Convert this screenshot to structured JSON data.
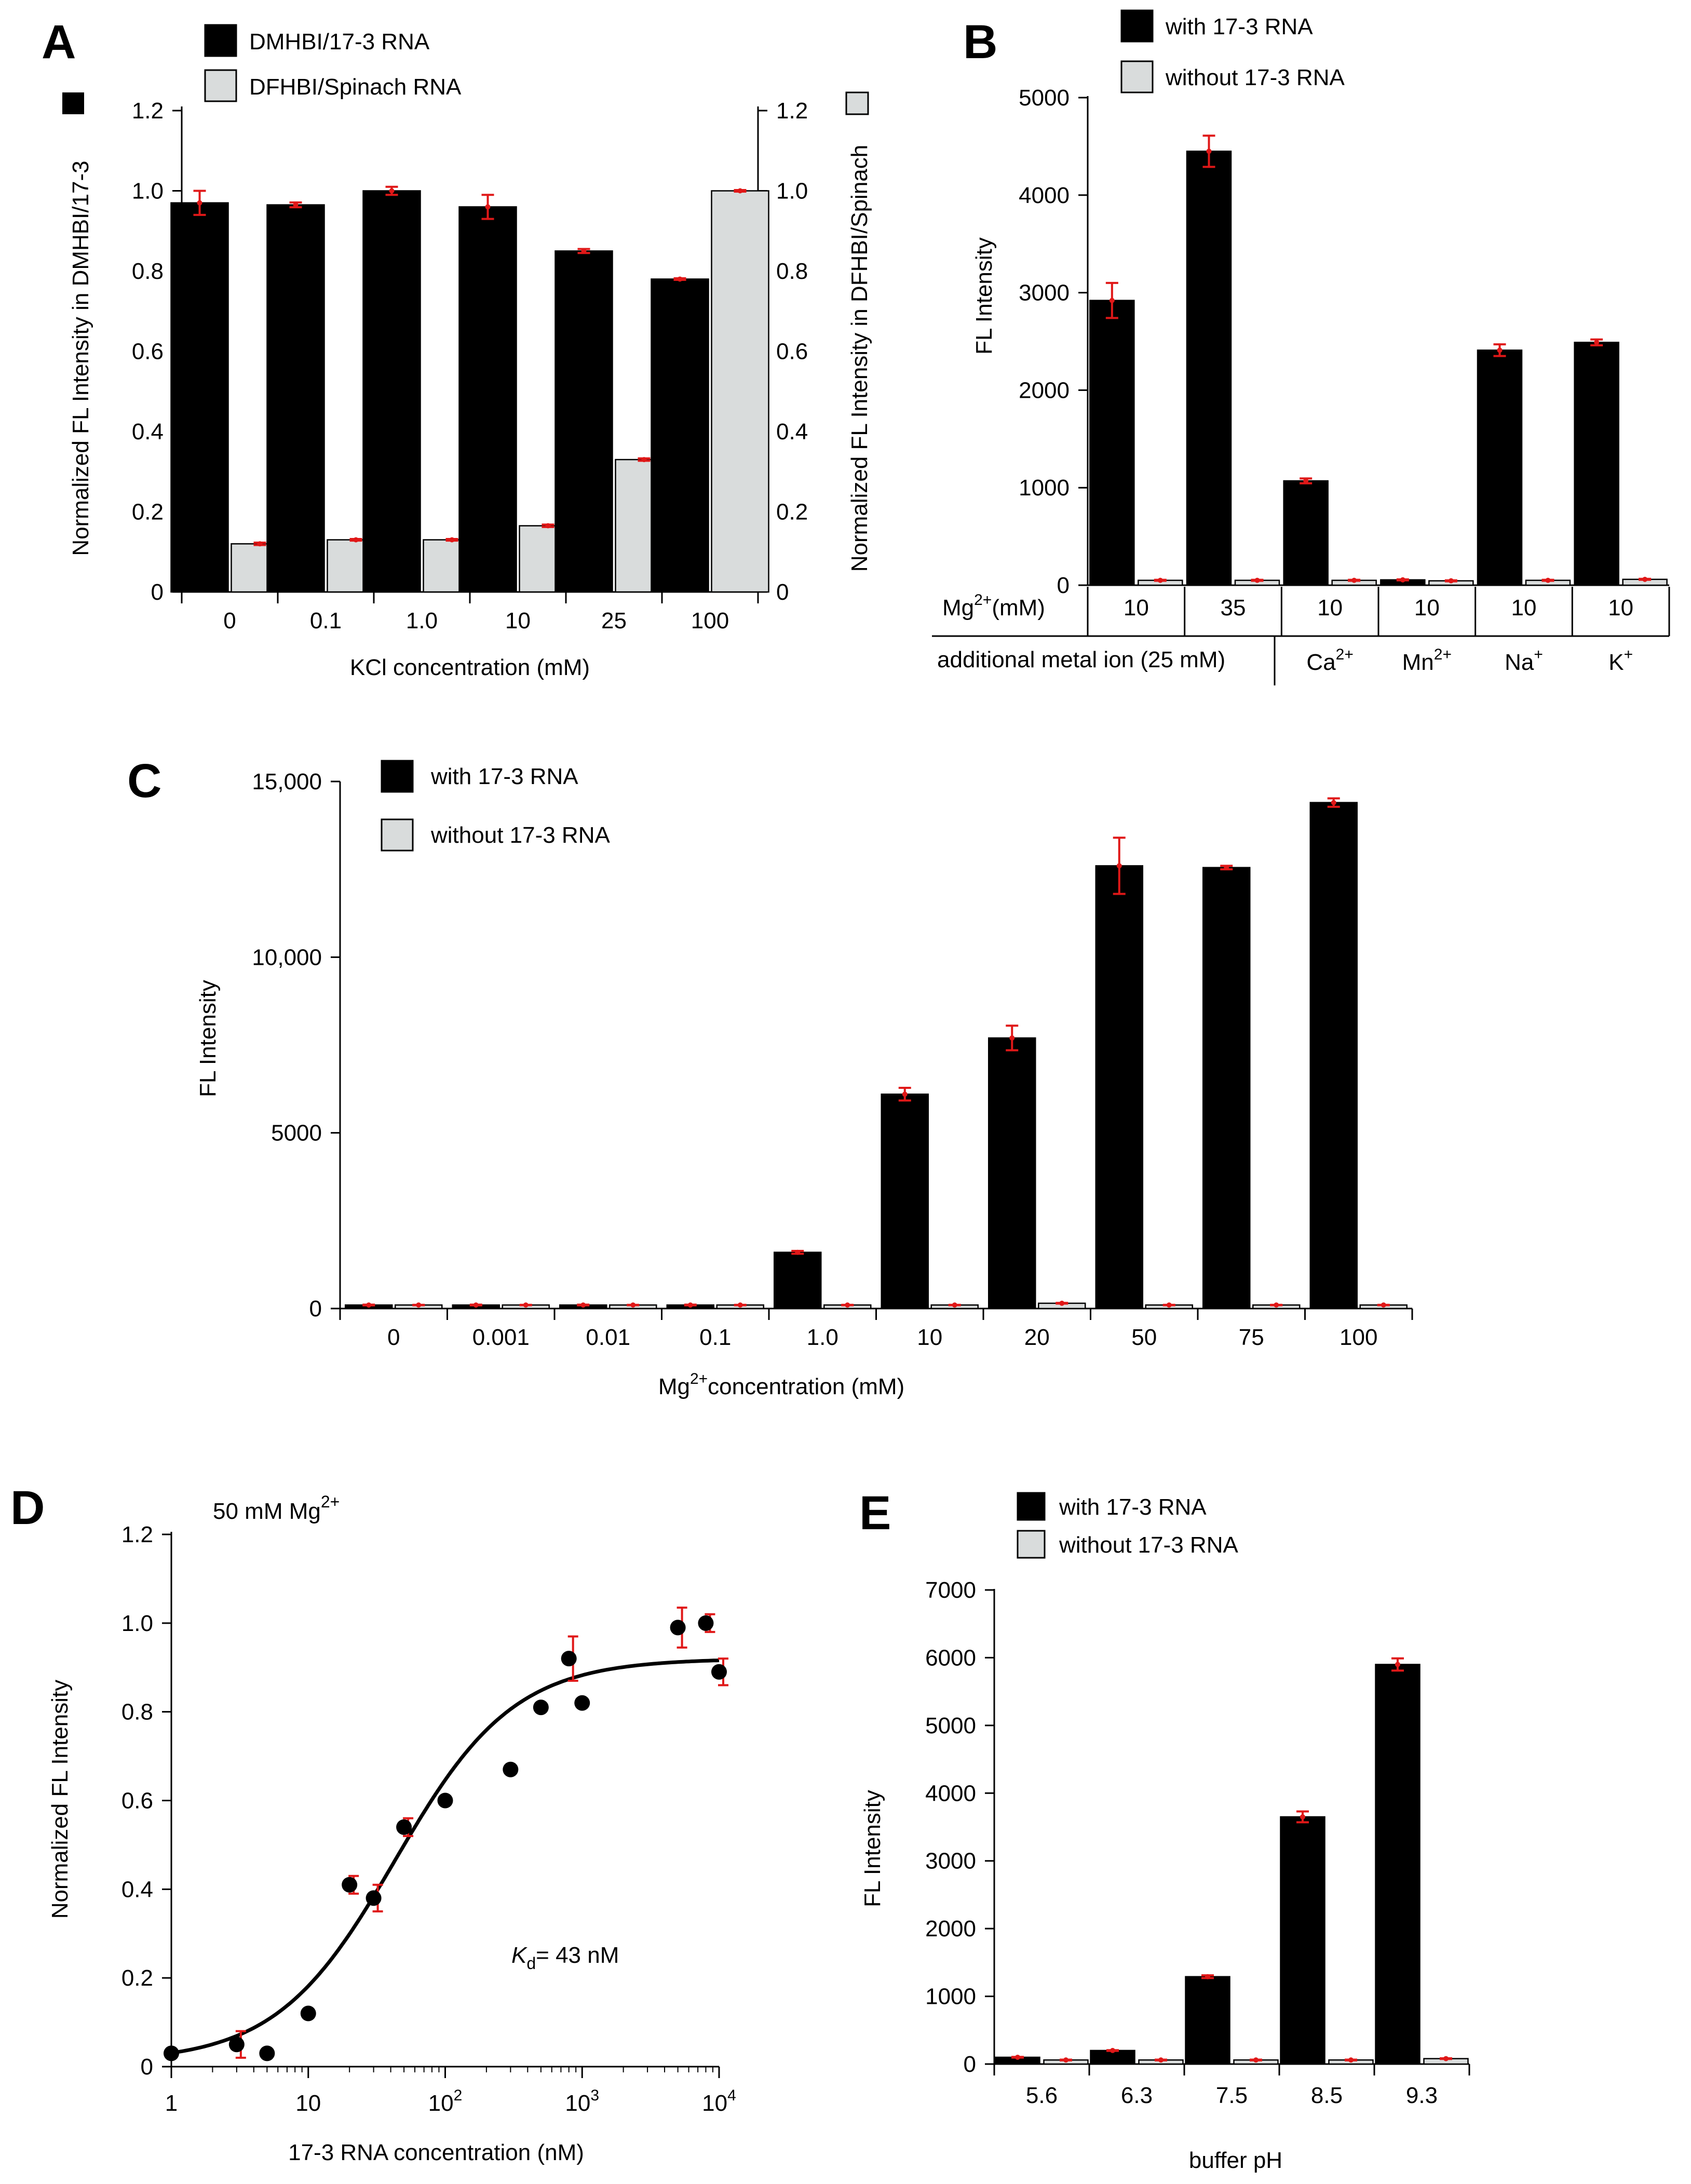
{
  "chart_data": [
    {
      "panel": "A",
      "type": "bar",
      "xlabel": "KCl concentration (mM)",
      "ylabel": "Normalized FL Intensity in DMHBI/17-3",
      "ylabel_right": "Normalized FL Intensity in DFHBI/Spinach",
      "ylim": [
        0,
        1.2
      ],
      "yticks": [
        "0",
        "0.2",
        "0.4",
        "0.6",
        "0.8",
        "1.0",
        "1.2"
      ],
      "categories": [
        "0",
        "0.1",
        "1.0",
        "10",
        "25",
        "100"
      ],
      "series": [
        {
          "name": "DMHBI/17-3 RNA",
          "color": "#000000",
          "values": [
            0.97,
            0.965,
            1.0,
            0.96,
            0.85,
            0.78
          ],
          "errors": [
            0.03,
            0.006,
            0.01,
            0.03,
            0.005,
            0.002
          ]
        },
        {
          "name": "DFHBI/Spinach RNA",
          "color": "#d9dcdc",
          "values": [
            0.12,
            0.13,
            0.13,
            0.165,
            0.33,
            1.0
          ],
          "errors": [
            0.003,
            0.002,
            0.002,
            0.003,
            0.003,
            0.002
          ]
        }
      ]
    },
    {
      "panel": "B",
      "type": "bar",
      "ylabel": "FL Intensity",
      "ylim": [
        0,
        5000
      ],
      "yticks": [
        "0",
        "1000",
        "2000",
        "3000",
        "4000",
        "5000"
      ],
      "row1_label": "Mg",
      "row1_sup": "2+",
      "row1_unit": "(mM)",
      "mg_values": [
        "10",
        "35",
        "10",
        "10",
        "10",
        "10"
      ],
      "row2_label": "additional metal ion (25 mM)",
      "ions": [
        {
          "base": "Ca",
          "sup": "2+"
        },
        {
          "base": "Mn",
          "sup": "2+"
        },
        {
          "base": "Na",
          "sup": "+"
        },
        {
          "base": "K",
          "sup": "+"
        }
      ],
      "series": [
        {
          "name": "with 17-3 RNA",
          "color": "#000000",
          "values": [
            2920,
            4450,
            1070,
            55,
            2410,
            2490
          ],
          "errors": [
            180,
            160,
            25,
            5,
            60,
            30
          ]
        },
        {
          "name": "without 17-3 RNA",
          "color": "#d9dcdc",
          "values": [
            50,
            50,
            50,
            45,
            50,
            60
          ],
          "errors": [
            5,
            5,
            5,
            5,
            5,
            5
          ]
        }
      ]
    },
    {
      "panel": "C",
      "type": "bar",
      "ylabel": "FL Intensity",
      "xlabel_base": "Mg",
      "xlabel_sup": "2+",
      "xlabel_rest": "concentration (mM)",
      "ylim": [
        0,
        15000
      ],
      "yticks": [
        "0",
        "5000",
        "10,000",
        "15,000"
      ],
      "ytick_values": [
        0,
        5000,
        10000,
        15000
      ],
      "categories": [
        "0",
        "0.001",
        "0.01",
        "0.1",
        "1.0",
        "10",
        "20",
        "50",
        "75",
        "100"
      ],
      "series": [
        {
          "name": "with 17-3 RNA",
          "color": "#000000",
          "values": [
            100,
            100,
            100,
            100,
            1600,
            6100,
            7700,
            12600,
            12550,
            14400
          ],
          "errors": [
            10,
            10,
            10,
            10,
            40,
            180,
            350,
            800,
            50,
            120
          ]
        },
        {
          "name": "without 17-3 RNA",
          "color": "#d9dcdc",
          "values": [
            100,
            100,
            100,
            100,
            100,
            100,
            150,
            100,
            100,
            100
          ],
          "errors": [
            5,
            5,
            5,
            5,
            5,
            5,
            10,
            5,
            5,
            5
          ]
        }
      ]
    },
    {
      "panel": "D",
      "type": "scatter",
      "annotation_base": "50 mM Mg",
      "annotation_sup": "2+",
      "kd_k": "K",
      "kd_sub": "d",
      "kd_rest": "= 43 nM",
      "ylabel": "Normalized FL Intensity",
      "xlabel": "17-3 RNA concentration (nM)",
      "xscale": "log",
      "xlim": [
        1,
        10000
      ],
      "ylim": [
        0,
        1.2
      ],
      "yticks": [
        "0",
        "0.2",
        "0.4",
        "0.6",
        "0.8",
        "1.0",
        "1.2"
      ],
      "xticks": [
        {
          "base": "1",
          "sup": ""
        },
        {
          "base": "10",
          "sup": ""
        },
        {
          "base": "10",
          "sup": "2"
        },
        {
          "base": "10",
          "sup": "3"
        },
        {
          "base": "10",
          "sup": "4"
        }
      ],
      "points": [
        {
          "x": 1,
          "y": 0.03,
          "err": 0
        },
        {
          "x": 3,
          "y": 0.05,
          "err": 0.03
        },
        {
          "x": 5,
          "y": 0.03,
          "err": 0
        },
        {
          "x": 10,
          "y": 0.12,
          "err": 0
        },
        {
          "x": 20,
          "y": 0.41,
          "err": 0.02
        },
        {
          "x": 30,
          "y": 0.38,
          "err": 0.03
        },
        {
          "x": 50,
          "y": 0.54,
          "err": 0.02
        },
        {
          "x": 100,
          "y": 0.6,
          "err": 0
        },
        {
          "x": 300,
          "y": 0.67,
          "err": 0
        },
        {
          "x": 500,
          "y": 0.81,
          "err": 0
        },
        {
          "x": 800,
          "y": 0.92,
          "err": 0.05
        },
        {
          "x": 1000,
          "y": 0.82,
          "err": 0
        },
        {
          "x": 5000,
          "y": 0.99,
          "err": 0.045
        },
        {
          "x": 8000,
          "y": 1.0,
          "err": 0.02
        },
        {
          "x": 10000,
          "y": 0.89,
          "err": 0.03
        }
      ],
      "fit": {
        "kd": 43,
        "ymin": 0.01,
        "ymax": 0.92
      }
    },
    {
      "panel": "E",
      "type": "bar",
      "ylabel": "FL Intensity",
      "xlabel": "buffer pH",
      "ylim": [
        0,
        7000
      ],
      "yticks": [
        "0",
        "1000",
        "2000",
        "3000",
        "4000",
        "5000",
        "6000",
        "7000"
      ],
      "categories": [
        "5.6",
        "6.3",
        "7.5",
        "8.5",
        "9.3"
      ],
      "series": [
        {
          "name": "with 17-3 RNA",
          "color": "#000000",
          "values": [
            100,
            200,
            1290,
            3650,
            5900
          ],
          "errors": [
            5,
            5,
            20,
            80,
            90
          ]
        },
        {
          "name": "without 17-3 RNA",
          "color": "#d9dcdc",
          "values": [
            60,
            60,
            60,
            60,
            80
          ],
          "errors": [
            5,
            5,
            5,
            5,
            5
          ]
        }
      ]
    }
  ]
}
